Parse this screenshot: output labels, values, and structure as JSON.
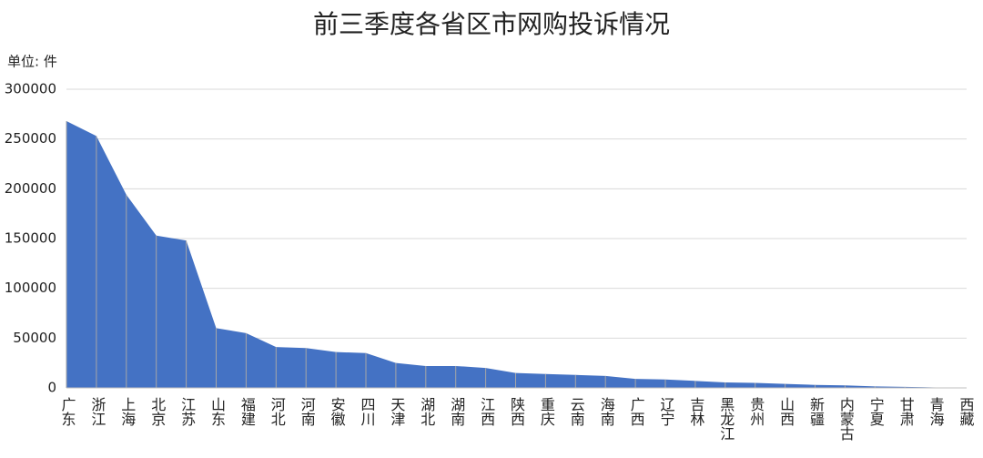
{
  "chart_data": {
    "type": "area",
    "title": "前三季度各省区市网购投诉情况",
    "unit_label": "单位: 件",
    "categories": [
      "广东",
      "浙江",
      "上海",
      "北京",
      "江苏",
      "山东",
      "福建",
      "河北",
      "河南",
      "安徽",
      "四川",
      "天津",
      "湖北",
      "湖南",
      "江西",
      "陕西",
      "重庆",
      "云南",
      "海南",
      "广西",
      "辽宁",
      "吉林",
      "黑龙江",
      "贵州",
      "山西",
      "新疆",
      "内蒙古",
      "宁夏",
      "甘肃",
      "青海",
      "西藏"
    ],
    "values": [
      268000,
      253000,
      194000,
      153000,
      148000,
      60000,
      55000,
      41000,
      40000,
      36000,
      35000,
      25000,
      22000,
      22000,
      20000,
      15000,
      14000,
      13000,
      12000,
      9000,
      8500,
      7000,
      5500,
      5000,
      4000,
      3000,
      2500,
      1500,
      1000,
      500,
      200
    ],
    "color": "#4472c4",
    "ylim": [
      0,
      300000
    ],
    "yticks": [
      0,
      50000,
      100000,
      150000,
      200000,
      250000,
      300000
    ],
    "grid": true
  }
}
